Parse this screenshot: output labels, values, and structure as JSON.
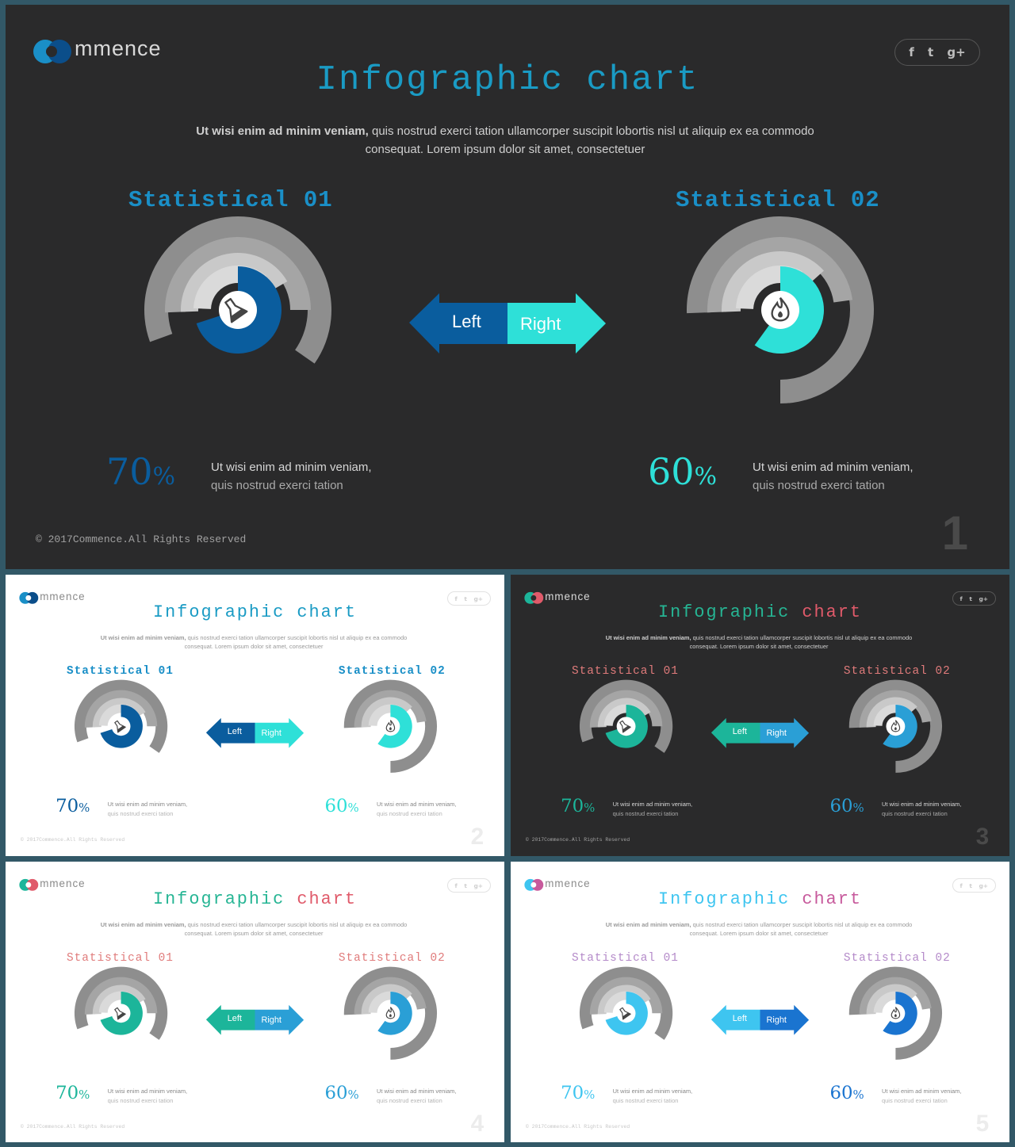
{
  "main": {
    "logo_text": "mmence",
    "title": "Infographic chart",
    "subtitle_bold": "Ut wisi enim ad minim veniam,",
    "subtitle_rest": " quis nostrud exerci tation ullamcorper suscipit lobortis nisl ut aliquip ex ea commodo",
    "subtitle_line2": "consequat. Lorem ipsum dolor sit amet, consectetuer",
    "stat1_title": "Statistical 01",
    "stat2_title": "Statistical 02",
    "arrow_left": "Left",
    "arrow_right": "Right",
    "stat1_value": "70",
    "stat2_value": "60",
    "percent_sign": "%",
    "stat_desc_line1": "Ut wisi enim ad minim veniam,",
    "stat_desc_line2": "quis nostrud exerci tation",
    "copyright": "2017Commence.All Rights Reserved",
    "copyright_symbol": "©",
    "social": [
      "f",
      "t",
      "g+"
    ],
    "icon1": "flask-icon",
    "icon2": "flame-icon"
  },
  "slides": [
    {
      "number": "1",
      "theme": "dark",
      "accent1": "#0a5d9e",
      "accent2": "#2ee0d8",
      "title_color": "#1a9bc4",
      "logo_colors": [
        "#1a8fc7",
        "#0b4e8a"
      ]
    },
    {
      "number": "2",
      "theme": "light",
      "accent1": "#0a5d9e",
      "accent2": "#2ee0d8",
      "title_color": "#1a9bc4",
      "logo_colors": [
        "#1a8fc7",
        "#0b4e8a"
      ]
    },
    {
      "number": "3",
      "theme": "dark",
      "accent1": "#1cb59a",
      "accent2": "#2a9fd6",
      "title_color": "#26b594",
      "title_color2": "#e05a6a",
      "logo_colors": [
        "#1cb59a",
        "#e05a6a"
      ]
    },
    {
      "number": "4",
      "theme": "light",
      "accent1": "#1cb59a",
      "accent2": "#2a9fd6",
      "title_color": "#26b594",
      "title_color2": "#e05a6a",
      "logo_colors": [
        "#1cb59a",
        "#e05a6a"
      ]
    },
    {
      "number": "5",
      "theme": "light",
      "accent1": "#3ec5f0",
      "accent2": "#1a74d0",
      "title_color": "#3ec5f0",
      "title_color2": "#c75a9c",
      "logo_colors": [
        "#3ec5f0",
        "#c75a9c"
      ]
    }
  ],
  "chart_data": [
    {
      "type": "pie",
      "title": "Statistical 01",
      "values": [
        70
      ],
      "unit": "%",
      "color": "#0a5d9e"
    },
    {
      "type": "pie",
      "title": "Statistical 02",
      "values": [
        60
      ],
      "unit": "%",
      "color": "#2ee0d8"
    }
  ]
}
